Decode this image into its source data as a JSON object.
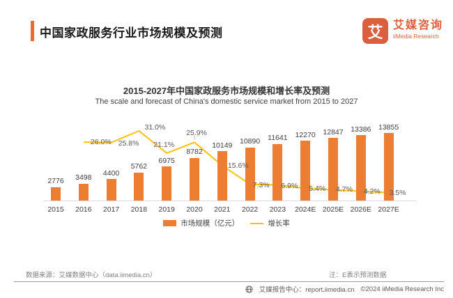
{
  "header": {
    "title": "中国家政服务行业市场规模及预测",
    "logo": {
      "glyph": "艾",
      "name_cn": "艾媒咨询",
      "name_en": "iiMedia Research"
    }
  },
  "chart": {
    "title": "2015-2027年中国家政服务市场规模和增长率及预测",
    "subtitle": "The scale and forecast of China's domestic service market from 2015 to 2027"
  },
  "chart_data": {
    "type": "bar",
    "title": "2015-2027年中国家政服务市场规模和增长率及预测",
    "categories": [
      "2015",
      "2016",
      "2017",
      "2018",
      "2019",
      "2020",
      "2021",
      "2022",
      "2023",
      "2024E",
      "2025E",
      "2026E",
      "2027E"
    ],
    "series": [
      {
        "name": "市场规模（亿元）",
        "type": "bar",
        "color": "#ED7D31",
        "values": [
          2776,
          3498,
          4400,
          5762,
          6975,
          8782,
          10149,
          10890,
          11641,
          12270,
          12847,
          13386,
          13855
        ]
      },
      {
        "name": "增长率",
        "type": "line",
        "color": "#FFC000",
        "unit": "%",
        "values": [
          null,
          26.0,
          25.8,
          31.0,
          21.1,
          25.9,
          15.6,
          7.3,
          6.9,
          5.4,
          4.7,
          4.2,
          3.5
        ]
      }
    ],
    "y_axis_visible": false,
    "grid": false,
    "legend_position": "bottom"
  },
  "footer": {
    "source": "数据来源：艾媒数据中心（data.iimedia.cn）",
    "note": "注：E表示预测数据",
    "report_center": "艾媒报告中心：report.iimedia.cn",
    "copyright": "©2024  iiMedia Research Inc"
  },
  "colors": {
    "bar": "#ED7D31",
    "line": "#FFC000",
    "accent": "#ED6A2E",
    "logo": "#DB5F3D",
    "axis": "#D9D9D9"
  }
}
